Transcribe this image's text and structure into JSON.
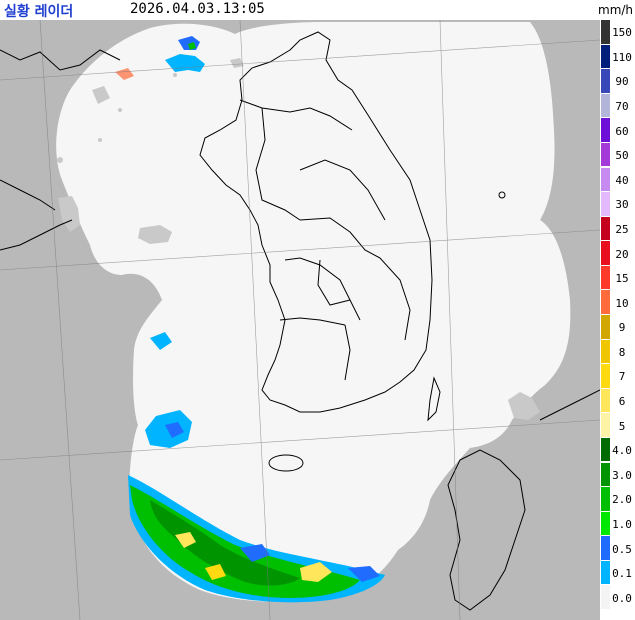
{
  "header": {
    "title": "실황 레이더",
    "timestamp": "2026.04.03.13:05",
    "unit": "mm/h"
  },
  "map": {
    "colors": {
      "outside": "#b9b9b9",
      "coverage": "#f6f6f6",
      "boundary": "#000000",
      "faint_echo": "#c8c8c8"
    }
  },
  "legend": {
    "items": [
      {
        "label": "150",
        "color": "#333333"
      },
      {
        "label": "110",
        "color": "#001f7a"
      },
      {
        "label": "90",
        "color": "#3848b8"
      },
      {
        "label": "70",
        "color": "#b2b4da"
      },
      {
        "label": "60",
        "color": "#6d0fd6"
      },
      {
        "label": "50",
        "color": "#a43ad8"
      },
      {
        "label": "40",
        "color": "#c68af0"
      },
      {
        "label": "30",
        "color": "#e3b9ff"
      },
      {
        "label": "25",
        "color": "#c4001e"
      },
      {
        "label": "20",
        "color": "#e8101f"
      },
      {
        "label": "15",
        "color": "#ff3a2a"
      },
      {
        "label": "10",
        "color": "#ff6b3a"
      },
      {
        "label": "9",
        "color": "#d2a800"
      },
      {
        "label": "8",
        "color": "#f0c600"
      },
      {
        "label": "7",
        "color": "#ffda10"
      },
      {
        "label": "6",
        "color": "#ffe65a"
      },
      {
        "label": "5",
        "color": "#fff3a6"
      },
      {
        "label": "4.0",
        "color": "#006b00"
      },
      {
        "label": "3.0",
        "color": "#009400"
      },
      {
        "label": "2.0",
        "color": "#00be00"
      },
      {
        "label": "1.0",
        "color": "#00e800"
      },
      {
        "label": "0.5",
        "color": "#1f6cff"
      },
      {
        "label": "0.1",
        "color": "#00b4ff"
      },
      {
        "label": "0.0",
        "color": "#f4f4f4"
      }
    ]
  }
}
